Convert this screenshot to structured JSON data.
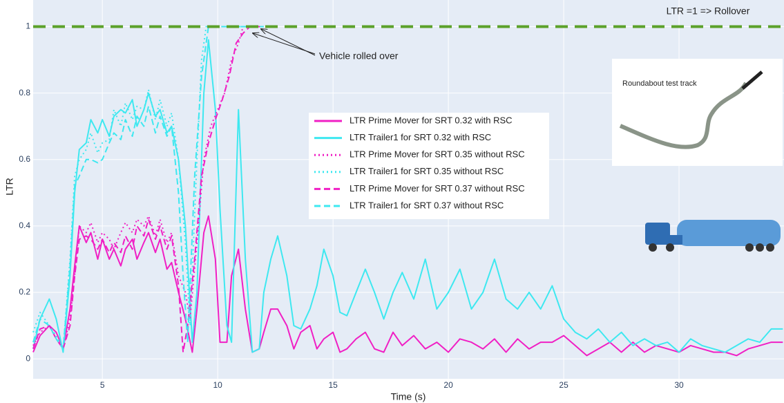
{
  "chart_data": {
    "type": "line",
    "xlabel": "Time (s)",
    "ylabel": "LTR",
    "xlim": [
      2,
      34.55
    ],
    "ylim": [
      -0.06,
      1.08
    ],
    "xticks": [
      5,
      10,
      15,
      20,
      25,
      30
    ],
    "yticks": [
      0,
      0.2,
      0.4,
      0.6,
      0.8,
      1
    ],
    "grid": true,
    "reference_line": {
      "value": 1,
      "label": "LTR =1 => Rollover",
      "color": "#5ba12a"
    },
    "annotation": "Vehicle rolled over",
    "inset_label": "Roundabout  test track",
    "series": [
      {
        "name": "LTR Prime Mover for SRT 0.32 with RSC",
        "color": "#f01fc4",
        "dash": "solid",
        "x": [
          2,
          2.3,
          2.7,
          3,
          3.3,
          3.6,
          3.8,
          4,
          4.3,
          4.5,
          4.8,
          5,
          5.3,
          5.5,
          5.8,
          6,
          6.3,
          6.5,
          6.8,
          7,
          7.3,
          7.5,
          7.8,
          8,
          8.3,
          8.6,
          8.9,
          9.1,
          9.4,
          9.6,
          9.9,
          10.1,
          10.4,
          10.6,
          10.9,
          11.2,
          11.5,
          11.8,
          12,
          12.3,
          12.6,
          13,
          13.3,
          13.6,
          14,
          14.3,
          14.6,
          15,
          15.3,
          15.6,
          16,
          16.4,
          16.8,
          17.2,
          17.6,
          18,
          18.5,
          19,
          19.5,
          20,
          20.5,
          21,
          21.5,
          22,
          22.5,
          23,
          23.5,
          24,
          24.5,
          25,
          25.5,
          26,
          26.5,
          27,
          27.5,
          28,
          28.5,
          29,
          29.5,
          30,
          30.5,
          31,
          31.5,
          32,
          32.5,
          33,
          33.5,
          34,
          34.5
        ],
        "values": [
          0.02,
          0.07,
          0.1,
          0.08,
          0.03,
          0.15,
          0.28,
          0.4,
          0.35,
          0.38,
          0.3,
          0.36,
          0.3,
          0.33,
          0.28,
          0.33,
          0.36,
          0.3,
          0.35,
          0.38,
          0.32,
          0.36,
          0.27,
          0.29,
          0.2,
          0.12,
          0.02,
          0.15,
          0.38,
          0.43,
          0.3,
          0.05,
          0.05,
          0.25,
          0.33,
          0.15,
          0.02,
          0.03,
          0.08,
          0.15,
          0.15,
          0.1,
          0.03,
          0.08,
          0.1,
          0.03,
          0.06,
          0.08,
          0.02,
          0.03,
          0.06,
          0.08,
          0.03,
          0.02,
          0.08,
          0.04,
          0.07,
          0.03,
          0.05,
          0.02,
          0.06,
          0.05,
          0.03,
          0.06,
          0.02,
          0.06,
          0.03,
          0.05,
          0.05,
          0.07,
          0.04,
          0.01,
          0.03,
          0.05,
          0.02,
          0.05,
          0.02,
          0.04,
          0.03,
          0.02,
          0.04,
          0.03,
          0.02,
          0.02,
          0.01,
          0.03,
          0.04,
          0.05,
          0.05
        ]
      },
      {
        "name": "LTR Trailer1 for SRT 0.32 with RSC",
        "color": "#3ee8f0",
        "dash": "solid",
        "x": [
          2,
          2.3,
          2.7,
          3,
          3.3,
          3.6,
          3.8,
          4,
          4.3,
          4.5,
          4.8,
          5,
          5.3,
          5.5,
          5.8,
          6,
          6.3,
          6.5,
          6.8,
          7,
          7.3,
          7.5,
          7.8,
          8,
          8.3,
          8.6,
          8.9,
          9.1,
          9.4,
          9.6,
          9.9,
          10.1,
          10.4,
          10.6,
          10.9,
          11.2,
          11.5,
          11.8,
          12,
          12.3,
          12.6,
          13,
          13.3,
          13.6,
          14,
          14.3,
          14.6,
          15,
          15.3,
          15.6,
          16,
          16.4,
          16.8,
          17.2,
          17.6,
          18,
          18.5,
          19,
          19.5,
          20,
          20.5,
          21,
          21.5,
          22,
          22.5,
          23,
          23.5,
          24,
          24.5,
          25,
          25.5,
          26,
          26.5,
          27,
          27.5,
          28,
          28.5,
          29,
          29.5,
          30,
          30.5,
          31,
          31.5,
          32,
          32.5,
          33,
          33.5,
          34,
          34.5
        ],
        "values": [
          0.03,
          0.12,
          0.18,
          0.12,
          0.02,
          0.25,
          0.5,
          0.63,
          0.65,
          0.72,
          0.68,
          0.72,
          0.67,
          0.73,
          0.75,
          0.74,
          0.78,
          0.7,
          0.75,
          0.8,
          0.73,
          0.75,
          0.68,
          0.7,
          0.6,
          0.4,
          0.05,
          0.2,
          0.8,
          0.96,
          0.75,
          0.45,
          0.1,
          0.05,
          0.75,
          0.3,
          0.02,
          0.03,
          0.2,
          0.3,
          0.37,
          0.25,
          0.1,
          0.09,
          0.15,
          0.22,
          0.33,
          0.25,
          0.14,
          0.13,
          0.2,
          0.27,
          0.2,
          0.12,
          0.2,
          0.26,
          0.18,
          0.3,
          0.15,
          0.2,
          0.27,
          0.15,
          0.2,
          0.3,
          0.18,
          0.15,
          0.2,
          0.15,
          0.22,
          0.12,
          0.08,
          0.06,
          0.09,
          0.05,
          0.08,
          0.04,
          0.06,
          0.04,
          0.05,
          0.02,
          0.06,
          0.04,
          0.03,
          0.02,
          0.04,
          0.06,
          0.05,
          0.09,
          0.09
        ]
      },
      {
        "name": "LTR Prime Mover for SRT 0.35 without RSC",
        "color": "#f01fc4",
        "dash": "dot",
        "x": [
          2,
          2.3,
          2.7,
          3,
          3.3,
          3.6,
          3.8,
          4,
          4.3,
          4.5,
          4.8,
          5,
          5.3,
          5.5,
          5.8,
          6,
          6.3,
          6.5,
          6.8,
          7,
          7.3,
          7.5,
          7.8,
          8,
          8.3,
          8.6,
          8.8,
          9.1,
          9.4,
          9.7,
          10,
          10.3,
          10.6,
          10.9,
          11.1,
          11.3,
          12
        ],
        "values": [
          0.04,
          0.08,
          0.1,
          0.06,
          0.03,
          0.12,
          0.25,
          0.4,
          0.38,
          0.41,
          0.35,
          0.38,
          0.36,
          0.33,
          0.38,
          0.41,
          0.38,
          0.42,
          0.4,
          0.43,
          0.37,
          0.42,
          0.35,
          0.38,
          0.25,
          0.2,
          0.12,
          0.35,
          0.6,
          0.7,
          0.75,
          0.8,
          0.9,
          0.95,
          1,
          1,
          1
        ]
      },
      {
        "name": "LTR Trailer1 for SRT 0.35 without RSC",
        "color": "#3ee8f0",
        "dash": "dot",
        "x": [
          2,
          2.3,
          2.7,
          3,
          3.3,
          3.6,
          3.8,
          4,
          4.3,
          4.5,
          4.8,
          5,
          5.3,
          5.5,
          5.8,
          6,
          6.3,
          6.5,
          6.8,
          7,
          7.3,
          7.5,
          7.8,
          8,
          8.3,
          8.6,
          8.8,
          9.1,
          9.3,
          9.5,
          12
        ],
        "values": [
          0.08,
          0.14,
          0.1,
          0.07,
          0.03,
          0.3,
          0.55,
          0.6,
          0.63,
          0.68,
          0.62,
          0.65,
          0.66,
          0.75,
          0.7,
          0.77,
          0.72,
          0.76,
          0.75,
          0.81,
          0.72,
          0.78,
          0.7,
          0.74,
          0.6,
          0.35,
          0.1,
          0.6,
          0.9,
          1,
          1
        ]
      },
      {
        "name": "LTR Prime Mover for SRT 0.37 without RSC",
        "color": "#f01fc4",
        "dash": "dash",
        "x": [
          2,
          2.3,
          2.7,
          3,
          3.3,
          3.6,
          3.8,
          4,
          4.3,
          4.5,
          4.8,
          5,
          5.3,
          5.5,
          5.8,
          6,
          6.3,
          6.5,
          6.8,
          7,
          7.3,
          7.5,
          7.8,
          8,
          8.3,
          8.5,
          8.7,
          9,
          9.3,
          9.6,
          9.9,
          10.2,
          10.5,
          10.8,
          11.1,
          11.4,
          12
        ],
        "values": [
          0.03,
          0.09,
          0.1,
          0.06,
          0.03,
          0.1,
          0.25,
          0.36,
          0.37,
          0.36,
          0.33,
          0.36,
          0.32,
          0.35,
          0.32,
          0.37,
          0.33,
          0.4,
          0.37,
          0.42,
          0.36,
          0.4,
          0.33,
          0.37,
          0.22,
          0.02,
          0.1,
          0.3,
          0.55,
          0.65,
          0.72,
          0.78,
          0.85,
          0.95,
          0.98,
          1,
          1
        ]
      },
      {
        "name": "LTR Trailer1 for SRT 0.37 without RSC",
        "color": "#3ee8f0",
        "dash": "dash",
        "x": [
          2,
          2.3,
          2.7,
          3,
          3.3,
          3.6,
          3.8,
          4,
          4.3,
          4.5,
          4.8,
          5,
          5.3,
          5.5,
          5.8,
          6,
          6.3,
          6.5,
          6.8,
          7,
          7.3,
          7.5,
          7.8,
          8,
          8.3,
          8.5,
          8.7,
          9,
          9.3,
          9.6,
          12
        ],
        "values": [
          0.05,
          0.12,
          0.1,
          0.06,
          0.03,
          0.28,
          0.52,
          0.55,
          0.6,
          0.6,
          0.59,
          0.6,
          0.65,
          0.68,
          0.66,
          0.72,
          0.67,
          0.73,
          0.7,
          0.76,
          0.68,
          0.73,
          0.67,
          0.7,
          0.5,
          0.25,
          0.05,
          0.55,
          0.85,
          1,
          1
        ]
      }
    ]
  }
}
